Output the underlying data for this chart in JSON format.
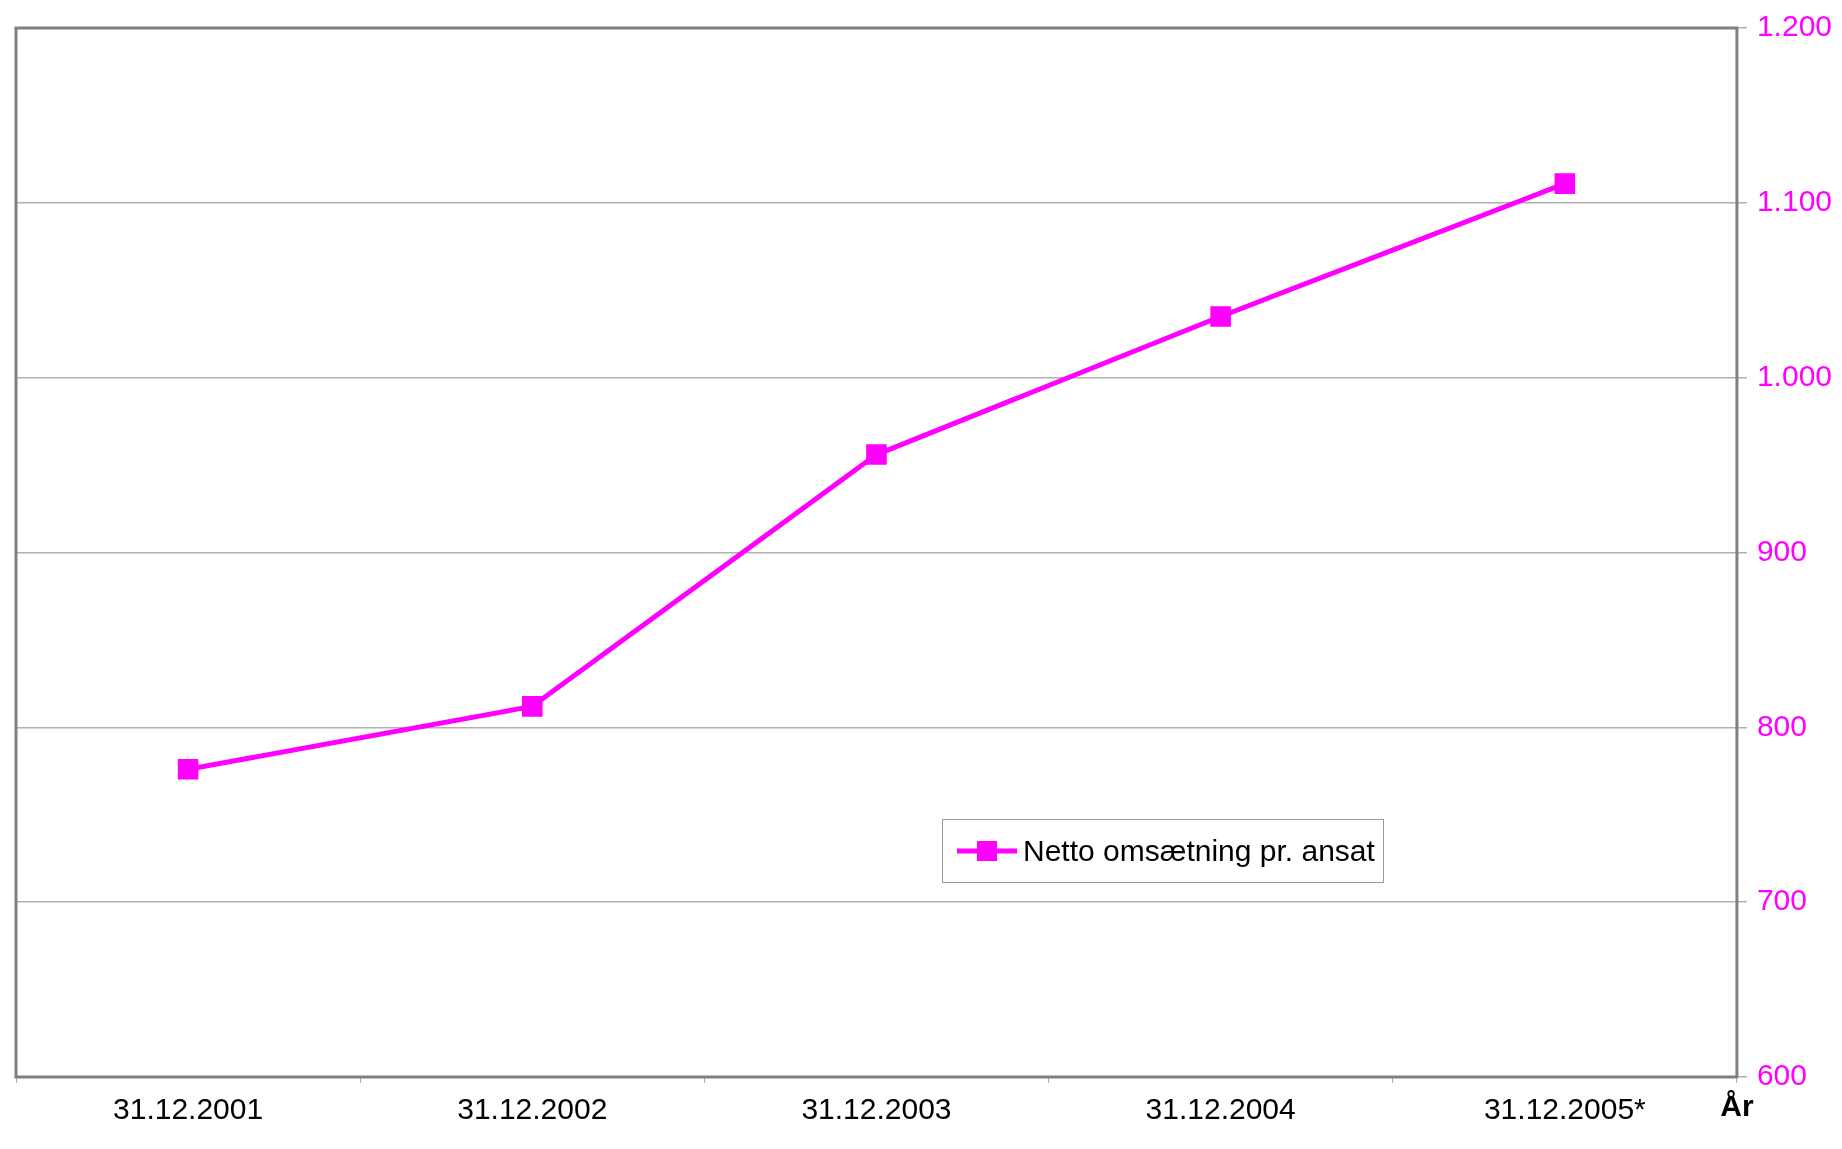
{
  "chart_data": {
    "type": "line",
    "xlabel": "År",
    "categories": [
      "31.12.2001",
      "31.12.2002",
      "31.12.2003",
      "31.12.2004",
      "31.12.2005*"
    ],
    "series": [
      {
        "name": "Netto omsætning pr. ansat",
        "color": "#ff00ff",
        "values": [
          776,
          812,
          956,
          1035,
          1111
        ]
      }
    ],
    "ylim": [
      600,
      1200
    ],
    "yticks": [
      {
        "value": 600,
        "label": "600"
      },
      {
        "value": 700,
        "label": "700"
      },
      {
        "value": 800,
        "label": "800"
      },
      {
        "value": 900,
        "label": "900"
      },
      {
        "value": 1000,
        "label": "1.000"
      },
      {
        "value": 1100,
        "label": "1.100"
      },
      {
        "value": 1200,
        "label": "1.200"
      }
    ],
    "grid": "y",
    "legend": "bottom right",
    "marker": "square",
    "line_style": "solid"
  }
}
